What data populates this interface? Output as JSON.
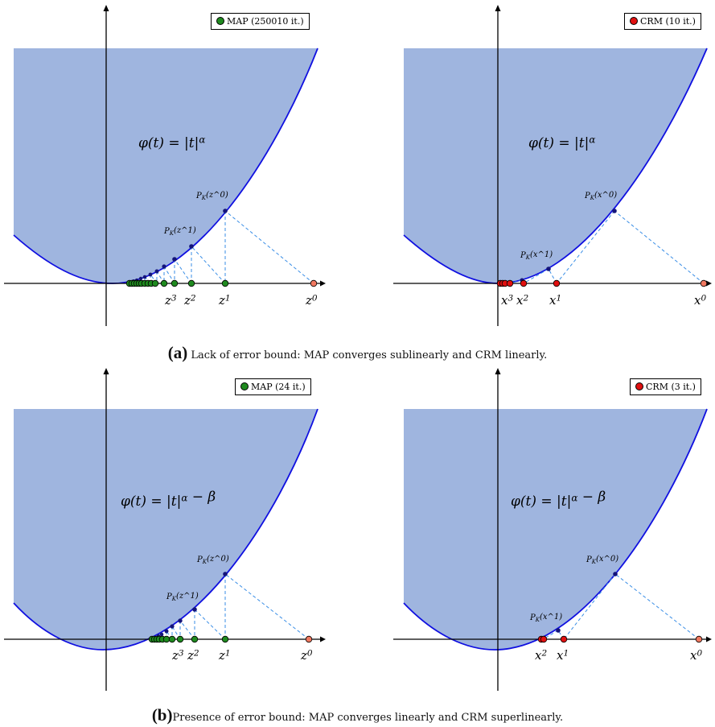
{
  "panels": [
    {
      "id": "a-left",
      "formula": "φ(t) = |t|^α",
      "legend": "MAP (250010 it.)",
      "method": "map",
      "iterate_symbol": "z",
      "point_labels": [
        "z^3",
        "z^2",
        "z^1",
        "z^0"
      ],
      "projection_labels": [
        "P_K(z^1)",
        "P_K(z^0)"
      ]
    },
    {
      "id": "a-right",
      "formula": "φ(t) = |t|^α",
      "legend": "CRM (10 it.)",
      "method": "crm",
      "iterate_symbol": "x",
      "point_labels": [
        "x^3",
        "x^2",
        "x^1",
        "x^0"
      ],
      "projection_labels": [
        "P_K(x^1)",
        "P_K(x^0)"
      ]
    },
    {
      "id": "b-left",
      "formula": "φ(t) = |t|^α − β",
      "legend": "MAP (24 it.)",
      "method": "map",
      "iterate_symbol": "z",
      "point_labels": [
        "z^3",
        "z^2",
        "z^1",
        "z^0"
      ],
      "projection_labels": [
        "P_K(z^1)",
        "P_K(z^0)"
      ]
    },
    {
      "id": "b-right",
      "formula": "φ(t) = |t|^α − β",
      "legend": "CRM (3 it.)",
      "method": "crm",
      "iterate_symbol": "x",
      "point_labels": [
        "x^2",
        "x^1",
        "x^0"
      ],
      "projection_labels": [
        "P_K(x^1)",
        "P_K(x^0)"
      ]
    }
  ],
  "captions": {
    "a": {
      "tag": "(a)",
      "text": "Lack of error bound: MAP converges sublinearly and CRM linearly."
    },
    "b": {
      "tag": "(b)",
      "text": "Presence of error bound: MAP converges linearly and CRM superlinearly."
    }
  },
  "colors": {
    "region_fill": "#9fb5df",
    "curve": "#1010e0",
    "projection_line": "#3a8ee6",
    "projection_point": "#14147a",
    "map_point": "#1f8a1f",
    "crm_point": "#e01010",
    "start_point": "#f07860",
    "axis": "#000000"
  }
}
